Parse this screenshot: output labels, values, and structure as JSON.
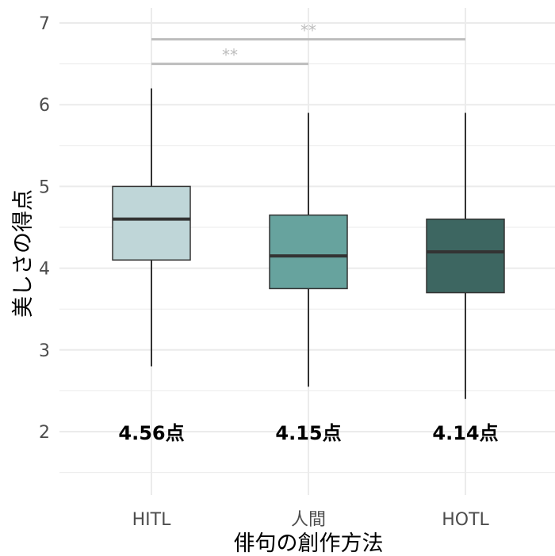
{
  "chart_data": {
    "type": "box",
    "xlabel": "俳句の創作方法",
    "ylabel": "美しさの得点",
    "ylim": [
      1.5,
      7
    ],
    "yticks": [
      2,
      3,
      4,
      5,
      6,
      7
    ],
    "grid": true,
    "categories": [
      "HITL",
      "人間",
      "HOTL"
    ],
    "boxes": [
      {
        "category": "HITL",
        "min": 2.8,
        "q1": 4.1,
        "median": 4.6,
        "q3": 5.0,
        "max": 6.2,
        "mean_label": "4.56点",
        "color": "#bfd6d8"
      },
      {
        "category": "人間",
        "min": 2.55,
        "q1": 3.75,
        "median": 4.15,
        "q3": 4.65,
        "max": 5.9,
        "mean_label": "4.15点",
        "color": "#67a39e"
      },
      {
        "category": "HOTL",
        "min": 2.4,
        "q1": 3.7,
        "median": 4.2,
        "q3": 4.6,
        "max": 5.9,
        "mean_label": "4.14点",
        "color": "#3d6661"
      }
    ],
    "significance": [
      {
        "from": "HITL",
        "to": "人間",
        "y": 6.5,
        "label": "**"
      },
      {
        "from": "HITL",
        "to": "HOTL",
        "y": 6.8,
        "label": "**"
      }
    ],
    "colors": {
      "grid": "#ebebeb",
      "box_line": "#333333",
      "sig_line": "#bdbdbd",
      "tick_text": "#4d4d4d"
    }
  }
}
